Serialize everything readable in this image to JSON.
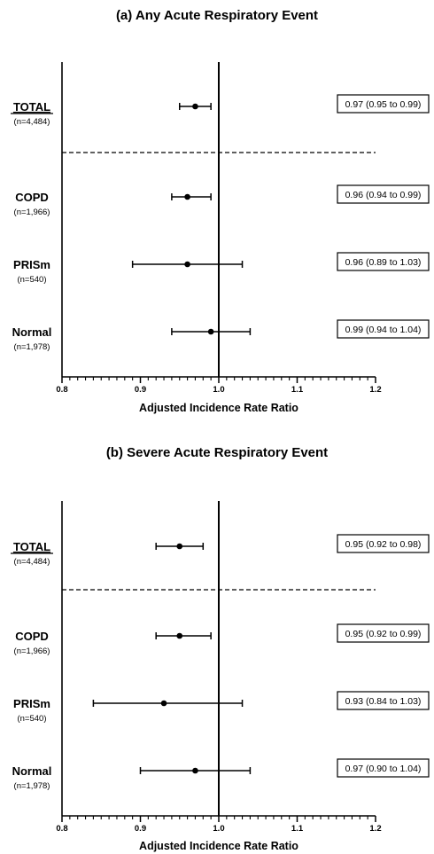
{
  "chart_data": [
    {
      "type": "forest",
      "title": "(a) Any Acute Respiratory Event",
      "xlabel": "Adjusted Incidence Rate Ratio",
      "xlim": [
        0.8,
        1.2
      ],
      "x_ticks": [
        "0.8",
        "0.9",
        "1.0",
        "1.1",
        "1.2"
      ],
      "reference_line": 1.0,
      "rows": [
        {
          "label": "TOTAL",
          "n": "(n=4,484)",
          "estimate": 0.97,
          "lower": 0.95,
          "upper": 0.99,
          "ci_text": "0.97 (0.95 to 0.99)"
        },
        {
          "label": "COPD",
          "n": "(n=1,966)",
          "estimate": 0.96,
          "lower": 0.94,
          "upper": 0.99,
          "ci_text": "0.96 (0.94 to 0.99)"
        },
        {
          "label": "PRISm",
          "n": "(n=540)",
          "estimate": 0.96,
          "lower": 0.89,
          "upper": 1.03,
          "ci_text": "0.96 (0.89 to 1.03)"
        },
        {
          "label": "Normal",
          "n": "(n=1,978)",
          "estimate": 0.99,
          "lower": 0.94,
          "upper": 1.04,
          "ci_text": "0.99 (0.94 to 1.04)"
        }
      ]
    },
    {
      "type": "forest",
      "title": "(b) Severe Acute Respiratory Event",
      "xlabel": "Adjusted Incidence Rate Ratio",
      "xlim": [
        0.8,
        1.2
      ],
      "x_ticks": [
        "0.8",
        "0.9",
        "1.0",
        "1.1",
        "1.2"
      ],
      "reference_line": 1.0,
      "rows": [
        {
          "label": "TOTAL",
          "n": "(n=4,484)",
          "estimate": 0.95,
          "lower": 0.92,
          "upper": 0.98,
          "ci_text": "0.95 (0.92 to 0.98)"
        },
        {
          "label": "COPD",
          "n": "(n=1,966)",
          "estimate": 0.95,
          "lower": 0.92,
          "upper": 0.99,
          "ci_text": "0.95 (0.92 to 0.99)"
        },
        {
          "label": "PRISm",
          "n": "(n=540)",
          "estimate": 0.93,
          "lower": 0.84,
          "upper": 1.03,
          "ci_text": "0.93 (0.84 to 1.03)"
        },
        {
          "label": "Normal",
          "n": "(n=1,978)",
          "estimate": 0.97,
          "lower": 0.9,
          "upper": 1.04,
          "ci_text": "0.97 (0.90 to 1.04)"
        }
      ]
    }
  ]
}
